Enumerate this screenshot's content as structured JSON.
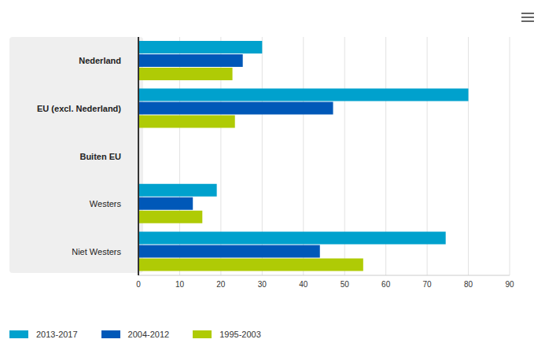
{
  "chart_data": {
    "type": "bar",
    "orientation": "horizontal",
    "categories": [
      "Nederland",
      "EU (excl. Nederland)",
      "Buiten EU",
      "Westers",
      "Niet Westers"
    ],
    "series": [
      {
        "name": "2013-2017",
        "color": "#00a1cd",
        "values": [
          30,
          80,
          null,
          19,
          74.5
        ]
      },
      {
        "name": "2004-2012",
        "color": "#0058b8",
        "values": [
          25.3,
          47.2,
          null,
          13.2,
          44
        ]
      },
      {
        "name": "1995-2003",
        "color": "#afcb05",
        "values": [
          22.8,
          23.4,
          null,
          15.5,
          54.5
        ]
      }
    ],
    "xlim": [
      0,
      90
    ],
    "xticks": [
      0,
      10,
      20,
      30,
      40,
      50,
      60,
      70,
      80,
      90
    ],
    "grid": true,
    "legend": "bottom"
  }
}
